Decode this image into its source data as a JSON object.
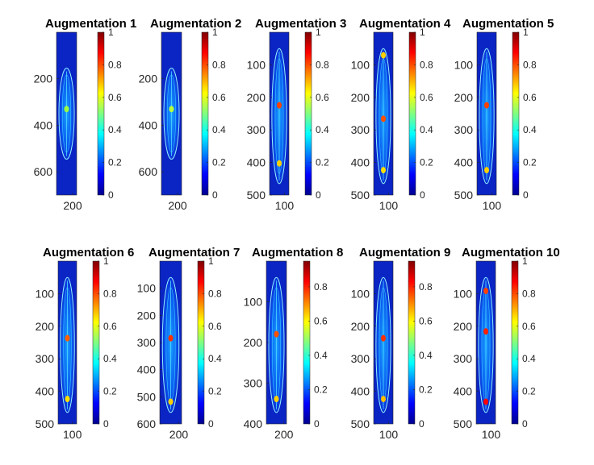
{
  "figure": {
    "colormap": "jet",
    "background": "#ffffff",
    "colormap_stops": [
      "#00008f",
      "#0000ff",
      "#0080ff",
      "#00ffff",
      "#80ff80",
      "#ffff00",
      "#ff8000",
      "#ff0000",
      "#800000"
    ]
  },
  "chart_data": [
    {
      "type": "heatmap",
      "title": "Augmentation 1",
      "x_ticks": [
        200
      ],
      "y_ticks": [
        200,
        400,
        600
      ],
      "ylim": [
        0,
        700
      ],
      "xlim": [
        0,
        250
      ],
      "colorbar_ticks": [
        0,
        0.2,
        0.4,
        0.6,
        0.8,
        1
      ],
      "colorbar_range": [
        0,
        1
      ]
    },
    {
      "type": "heatmap",
      "title": "Augmentation 2",
      "x_ticks": [
        200
      ],
      "y_ticks": [
        200,
        400,
        600
      ],
      "ylim": [
        0,
        700
      ],
      "xlim": [
        0,
        250
      ],
      "colorbar_ticks": [
        0,
        0.2,
        0.4,
        0.6,
        0.8,
        1
      ],
      "colorbar_range": [
        0,
        1
      ]
    },
    {
      "type": "heatmap",
      "title": "Augmentation 3",
      "x_ticks": [
        100
      ],
      "y_ticks": [
        100,
        200,
        300,
        400,
        500
      ],
      "ylim": [
        0,
        500
      ],
      "xlim": [
        0,
        130
      ],
      "colorbar_ticks": [
        0,
        0.2,
        0.4,
        0.6,
        0.8,
        1
      ],
      "colorbar_range": [
        0,
        1
      ]
    },
    {
      "type": "heatmap",
      "title": "Augmentation 4",
      "x_ticks": [
        100
      ],
      "y_ticks": [
        100,
        200,
        300,
        400,
        500
      ],
      "ylim": [
        0,
        500
      ],
      "xlim": [
        0,
        130
      ],
      "colorbar_ticks": [
        0,
        0.2,
        0.4,
        0.6,
        0.8,
        1
      ],
      "colorbar_range": [
        0,
        1
      ]
    },
    {
      "type": "heatmap",
      "title": "Augmentation 5",
      "x_ticks": [
        100
      ],
      "y_ticks": [
        100,
        200,
        300,
        400,
        500
      ],
      "ylim": [
        0,
        500
      ],
      "xlim": [
        0,
        130
      ],
      "colorbar_ticks": [
        0,
        0.2,
        0.4,
        0.6,
        0.8,
        1
      ],
      "colorbar_range": [
        0,
        1
      ]
    },
    {
      "type": "heatmap",
      "title": "Augmentation 6",
      "x_ticks": [
        100
      ],
      "y_ticks": [
        100,
        200,
        300,
        400,
        500
      ],
      "ylim": [
        0,
        500
      ],
      "xlim": [
        0,
        130
      ],
      "colorbar_ticks": [
        0,
        0.2,
        0.4,
        0.6,
        0.8,
        1
      ],
      "colorbar_range": [
        0,
        1
      ]
    },
    {
      "type": "heatmap",
      "title": "Augmentation 7",
      "x_ticks": [
        200
      ],
      "y_ticks": [
        100,
        200,
        300,
        400,
        500,
        600
      ],
      "ylim": [
        0,
        600
      ],
      "xlim": [
        0,
        230
      ],
      "colorbar_ticks": [
        0,
        0.2,
        0.4,
        0.6,
        0.8,
        1
      ],
      "colorbar_range": [
        0,
        1
      ]
    },
    {
      "type": "heatmap",
      "title": "Augmentation 8",
      "x_ticks": [
        200
      ],
      "y_ticks": [
        100,
        200,
        300,
        400
      ],
      "ylim": [
        0,
        400
      ],
      "xlim": [
        0,
        230
      ],
      "colorbar_ticks": [
        0,
        0.2,
        0.4,
        0.6,
        0.8
      ],
      "colorbar_range": [
        0,
        0.95
      ]
    },
    {
      "type": "heatmap",
      "title": "Augmentation 9",
      "x_ticks": [
        100
      ],
      "y_ticks": [
        100,
        200,
        300,
        400,
        500
      ],
      "ylim": [
        0,
        500
      ],
      "xlim": [
        0,
        130
      ],
      "colorbar_ticks": [
        0,
        0.2,
        0.4,
        0.6,
        0.8
      ],
      "colorbar_range": [
        0,
        0.95
      ]
    },
    {
      "type": "heatmap",
      "title": "Augmentation 10",
      "x_ticks": [
        100
      ],
      "y_ticks": [
        100,
        200,
        300,
        400,
        500
      ],
      "ylim": [
        0,
        500
      ],
      "xlim": [
        0,
        130
      ],
      "colorbar_ticks": [
        0,
        0.2,
        0.4,
        0.6,
        0.8,
        1
      ],
      "colorbar_range": [
        0,
        1
      ]
    }
  ]
}
